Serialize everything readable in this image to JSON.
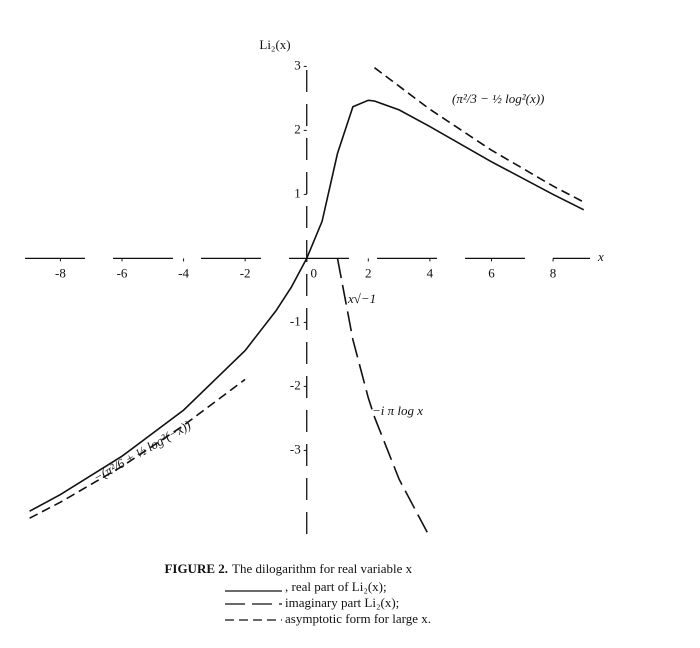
{
  "chart_data": {
    "type": "line",
    "y_label": "Li₂(x)",
    "x_label": "x",
    "caption_label": "FIGURE 2.",
    "caption": "The dilogarithm for real variable x",
    "x": [
      -9,
      -8,
      -6,
      -4,
      -2,
      -1,
      -0.5,
      0,
      0.5,
      1,
      1.5,
      2,
      2.2,
      3,
      4,
      6,
      8,
      9
    ],
    "series": [
      {
        "name": ", real part of Li₂(x);",
        "color": "#111111",
        "dash": "none",
        "values": [
          -3.95,
          -3.69,
          -3.09,
          -2.37,
          -1.44,
          -0.82,
          -0.45,
          0,
          0.58,
          1.64,
          2.37,
          2.47,
          2.46,
          2.32,
          2.06,
          1.51,
          1.0,
          0.76
        ]
      },
      {
        "name": "imaginary part Li₂(x);",
        "color": "#111111",
        "dash": "20 7",
        "values": [
          null,
          null,
          null,
          null,
          null,
          null,
          null,
          null,
          null,
          0,
          -1.27,
          -2.18,
          -2.48,
          -3.45,
          -4.36,
          null,
          null,
          null
        ]
      },
      {
        "name": "asymptotic form for large x.",
        "color": "#111111",
        "dash": "9 5",
        "values": [
          -4.06,
          -3.81,
          -3.25,
          -2.61,
          -1.89,
          null,
          null,
          null,
          null,
          null,
          null,
          null,
          2.98,
          2.69,
          2.33,
          1.69,
          1.13,
          0.88
        ]
      }
    ],
    "annotations": [
      "x√−1",
      "−i π log x",
      "(π²/3 − ½ log²(x))",
      "−(π²/6 + ½ log²(−x))"
    ],
    "xlim": [
      -9.15,
      9.2
    ],
    "ylim": [
      -4.4,
      3.1
    ],
    "xticks": [
      -8,
      -6,
      -4,
      -2,
      0,
      2,
      4,
      6,
      8
    ],
    "yticks": [
      -3,
      -2,
      -1,
      1,
      2,
      3
    ]
  }
}
